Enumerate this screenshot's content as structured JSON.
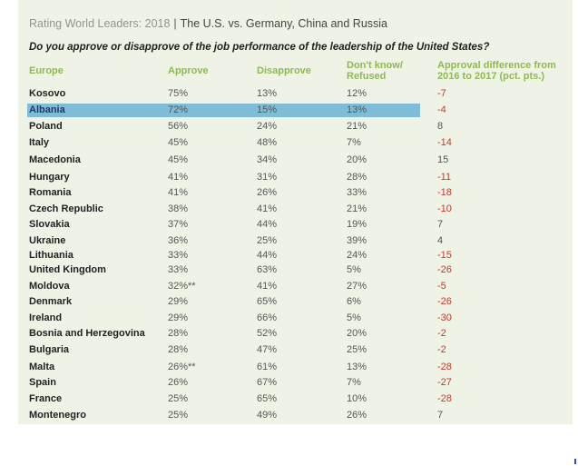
{
  "title": {
    "gray": "Rating World Leaders: 2018",
    "separator": "|",
    "rest": "The U.S. vs. Germany, China and Russia"
  },
  "question": "Do you approve or disapprove of the job performance of the leadership of the United States?",
  "headers": {
    "region": "Europe",
    "approve": "Approve",
    "disapprove": "Disapprove",
    "dontknow_1": "Don't know/",
    "dontknow_2": "Refused",
    "diff_1": "Approval difference from",
    "diff_2": "2016 to 2017 (pct. pts.)"
  },
  "selected_row": "Albania",
  "colors": {
    "accent_green": "#8dbb50",
    "negative_red": "#c23b2f",
    "selection_blue": "#7fbcd8",
    "panel": "#eef3e6"
  },
  "rows": [
    {
      "country": "Kosovo",
      "approve": "75%",
      "disapprove": "13%",
      "dontknow": "12%",
      "diff": "-7"
    },
    {
      "country": "Albania",
      "approve": "72%",
      "disapprove": "15%",
      "dontknow": "13%",
      "diff": "-4"
    },
    {
      "country": "Poland",
      "approve": "56%",
      "disapprove": "24%",
      "dontknow": "21%",
      "diff": "8"
    },
    {
      "country": "Italy",
      "approve": "45%",
      "disapprove": "48%",
      "dontknow": "7%",
      "diff": "-14"
    },
    {
      "country": "Macedonia",
      "approve": "45%",
      "disapprove": "34%",
      "dontknow": "20%",
      "diff": "15"
    },
    {
      "country": "Hungary",
      "approve": "41%",
      "disapprove": "31%",
      "dontknow": "28%",
      "diff": "-11"
    },
    {
      "country": "Romania",
      "approve": "41%",
      "disapprove": "26%",
      "dontknow": "33%",
      "diff": "-18"
    },
    {
      "country": "Czech Republic",
      "approve": "38%",
      "disapprove": "41%",
      "dontknow": "21%",
      "diff": "-10"
    },
    {
      "country": "Slovakia",
      "approve": "37%",
      "disapprove": "44%",
      "dontknow": "19%",
      "diff": "7"
    },
    {
      "country": "Ukraine",
      "approve": "36%",
      "disapprove": "25%",
      "dontknow": "39%",
      "diff": "4"
    },
    {
      "country": "Lithuania",
      "approve": "33%",
      "disapprove": "44%",
      "dontknow": "24%",
      "diff": "-15"
    },
    {
      "country": "United Kingdom",
      "approve": "33%",
      "disapprove": "63%",
      "dontknow": "5%",
      "diff": "-26"
    },
    {
      "country": "Moldova",
      "approve": "32%**",
      "disapprove": "41%",
      "dontknow": "27%",
      "diff": "-5"
    },
    {
      "country": "Denmark",
      "approve": "29%",
      "disapprove": "65%",
      "dontknow": "6%",
      "diff": "-26"
    },
    {
      "country": "Ireland",
      "approve": "29%",
      "disapprove": "66%",
      "dontknow": "5%",
      "diff": "-30"
    },
    {
      "country": "Bosnia and Herzegovina",
      "approve": "28%",
      "disapprove": "52%",
      "dontknow": "20%",
      "diff": "-2"
    },
    {
      "country": "Bulgaria",
      "approve": "28%",
      "disapprove": "47%",
      "dontknow": "25%",
      "diff": "-2"
    },
    {
      "country": "Malta",
      "approve": "26%**",
      "disapprove": "61%",
      "dontknow": "13%",
      "diff": "-28"
    },
    {
      "country": "Spain",
      "approve": "26%",
      "disapprove": "67%",
      "dontknow": "7%",
      "diff": "-27"
    },
    {
      "country": "France",
      "approve": "25%",
      "disapprove": "65%",
      "dontknow": "10%",
      "diff": "-28"
    },
    {
      "country": "Montenegro",
      "approve": "25%",
      "disapprove": "49%",
      "dontknow": "26%",
      "diff": "7"
    }
  ]
}
